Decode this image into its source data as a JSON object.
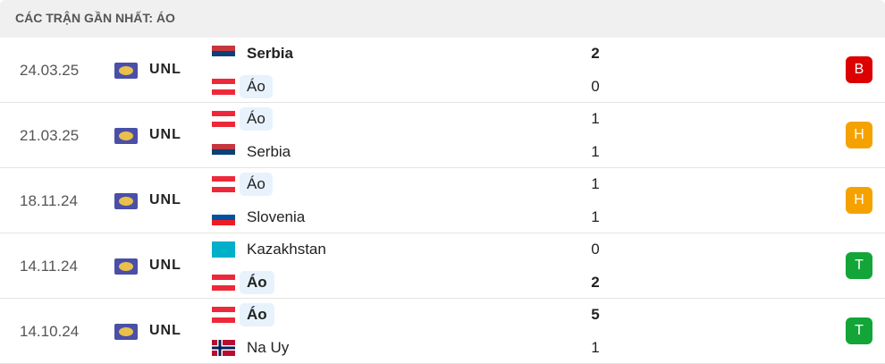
{
  "title": "CÁC TRẬN GẦN NHẤT: ÁO",
  "matches": [
    {
      "date": "24.03.25",
      "competition": "UNL",
      "home": {
        "name": "Serbia",
        "score": 2,
        "winner": true,
        "highlight": false,
        "flag": {
          "stripes": [
            "#c6363c",
            "#0c4076",
            "#ffffff"
          ]
        }
      },
      "away": {
        "name": "Áo",
        "score": 0,
        "winner": false,
        "highlight": true,
        "flag": {
          "stripes": [
            "#ed2939",
            "#ffffff",
            "#ed2939"
          ]
        }
      },
      "result": "B",
      "result_color": "#dc0000"
    },
    {
      "date": "21.03.25",
      "competition": "UNL",
      "home": {
        "name": "Áo",
        "score": 1,
        "winner": false,
        "highlight": true,
        "flag": {
          "stripes": [
            "#ed2939",
            "#ffffff",
            "#ed2939"
          ]
        }
      },
      "away": {
        "name": "Serbia",
        "score": 1,
        "winner": false,
        "highlight": false,
        "flag": {
          "stripes": [
            "#c6363c",
            "#0c4076",
            "#ffffff"
          ]
        }
      },
      "result": "H",
      "result_color": "#f5a200"
    },
    {
      "date": "18.11.24",
      "competition": "UNL",
      "home": {
        "name": "Áo",
        "score": 1,
        "winner": false,
        "highlight": true,
        "flag": {
          "stripes": [
            "#ed2939",
            "#ffffff",
            "#ed2939"
          ]
        }
      },
      "away": {
        "name": "Slovenia",
        "score": 1,
        "winner": false,
        "highlight": false,
        "flag": {
          "stripes": [
            "#ffffff",
            "#0051a0",
            "#ed1c24"
          ]
        }
      },
      "result": "H",
      "result_color": "#f5a200"
    },
    {
      "date": "14.11.24",
      "competition": "UNL",
      "home": {
        "name": "Kazakhstan",
        "score": 0,
        "winner": false,
        "highlight": false,
        "flag": {
          "stripes": [
            "#00afca"
          ]
        }
      },
      "away": {
        "name": "Áo",
        "score": 2,
        "winner": true,
        "highlight": true,
        "flag": {
          "stripes": [
            "#ed2939",
            "#ffffff",
            "#ed2939"
          ]
        }
      },
      "result": "T",
      "result_color": "#13a538"
    },
    {
      "date": "14.10.24",
      "competition": "UNL",
      "home": {
        "name": "Áo",
        "score": 5,
        "winner": true,
        "highlight": true,
        "flag": {
          "stripes": [
            "#ed2939",
            "#ffffff",
            "#ed2939"
          ]
        }
      },
      "away": {
        "name": "Na Uy",
        "score": 1,
        "winner": false,
        "highlight": false,
        "flag": {
          "stripes": [
            "#ba0c2f"
          ],
          "cross": [
            "#ffffff",
            "#00205b"
          ]
        }
      },
      "result": "T",
      "result_color": "#13a538"
    }
  ]
}
